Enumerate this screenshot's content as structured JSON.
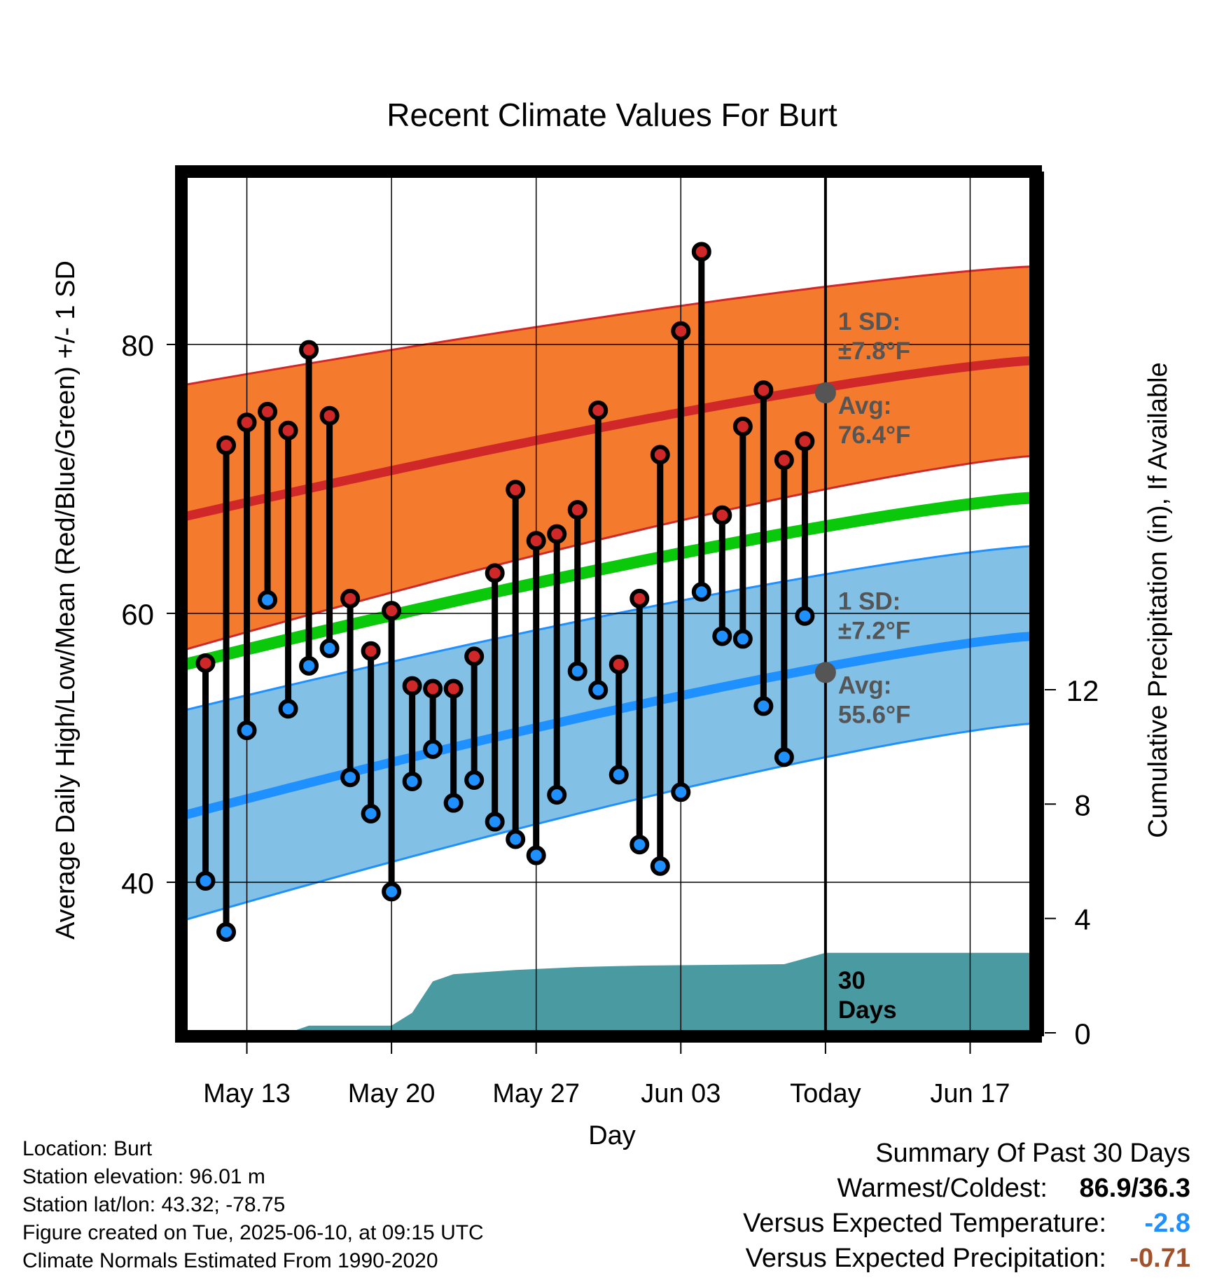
{
  "chart_data": {
    "type": "line",
    "title": "Recent Climate Values For Burt",
    "xlabel": "Day",
    "ylabel": "Average Daily High/Low/Mean (Red/Blue/Green) +/- 1 SD",
    "y2label": "Cumulative Precipitation (in), If Available",
    "x_tick_labels": [
      "May 13",
      "May 20",
      "May 27",
      "Jun 03",
      "Today",
      "Jun 17"
    ],
    "ylim": [
      28.8,
      92.6
    ],
    "y_ticks": [
      40,
      60,
      80
    ],
    "y2lim": [
      0,
      30
    ],
    "y2_ticks": [
      0,
      4,
      8,
      12
    ],
    "x_start": "May 10",
    "x_end": "Jun 20",
    "grid": true,
    "daily_highs": [
      56.3,
      72.5,
      74.2,
      75.0,
      73.6,
      79.6,
      74.7,
      61.1,
      57.2,
      60.2,
      54.6,
      54.4,
      54.4,
      56.8,
      63.0,
      69.2,
      65.4,
      65.9,
      67.7,
      75.1,
      56.2,
      61.1,
      71.8,
      81.0,
      86.9,
      67.3,
      73.9,
      76.6,
      71.4,
      72.8
    ],
    "daily_lows": [
      40.1,
      36.3,
      51.3,
      61.0,
      52.9,
      56.1,
      57.4,
      47.8,
      45.1,
      39.3,
      47.5,
      49.9,
      45.9,
      47.6,
      44.5,
      43.2,
      42.0,
      46.5,
      55.7,
      54.3,
      48.0,
      42.8,
      41.2,
      46.7,
      61.6,
      58.3,
      58.1,
      53.1,
      49.3,
      59.8
    ],
    "normal_high": {
      "start": 67.2,
      "today": 76.4,
      "end": 78.8,
      "upper_start": 77.0,
      "upper_end": 85.8,
      "lower_start": 57.3,
      "lower_end": 71.7,
      "sd": "±7.8"
    },
    "normal_low": {
      "start": 45.0,
      "today": 55.6,
      "end": 58.3,
      "upper_start": 52.8,
      "upper_end": 65.0,
      "lower_start": 37.2,
      "lower_end": 51.8,
      "sd": "±7.2"
    },
    "normal_mean": {
      "start": 56.2,
      "end": 68.6
    },
    "cumulative_precip": [
      [
        10,
        0
      ],
      [
        15,
        0
      ],
      [
        16,
        0.25
      ],
      [
        20,
        0.25
      ],
      [
        21,
        0.7
      ],
      [
        22,
        1.8
      ],
      [
        23,
        2.05
      ],
      [
        24,
        2.1
      ],
      [
        26,
        2.2
      ],
      [
        29,
        2.3
      ],
      [
        32,
        2.35
      ],
      [
        39,
        2.4
      ],
      [
        41,
        2.8
      ],
      [
        51,
        2.8
      ]
    ],
    "colors": {
      "high": "#d02828",
      "high_band": "#f47a2e",
      "low": "#1e90ff",
      "low_band": "#82c0e6",
      "mean": "#0ac80a",
      "precip": "#4a9aa2",
      "annotation": "#555555"
    },
    "annotations": {
      "high_sd_label": "1 SD:",
      "high_sd_value": "±7.8°F",
      "high_avg_label": "Avg:",
      "high_avg_value": "76.4°F",
      "low_sd_label": "1 SD:",
      "low_sd_value": "±7.2°F",
      "low_avg_label": "Avg:",
      "low_avg_value": "55.6°F",
      "days_count": "30",
      "days_label": "Days"
    }
  },
  "footer": {
    "location": "Location: Burt",
    "elevation": "Station elevation: 96.01 m",
    "latlon": "Station lat/lon: 43.32; -78.75",
    "created": "Figure created on Tue, 2025-06-10, at 09:15 UTC",
    "normals": "Climate Normals Estimated From 1990-2020"
  },
  "summary": {
    "title": "Summary Of Past 30 Days",
    "warmest_coldest_label": "Warmest/Coldest:",
    "warmest_coldest_value": "86.9/36.3",
    "temp_label": "Versus Expected Temperature:",
    "temp_value": "-2.8",
    "temp_color": "#1e90ff",
    "precip_label": "Versus Expected Precipitation:",
    "precip_value": "-0.71",
    "precip_color": "#a0522d"
  }
}
